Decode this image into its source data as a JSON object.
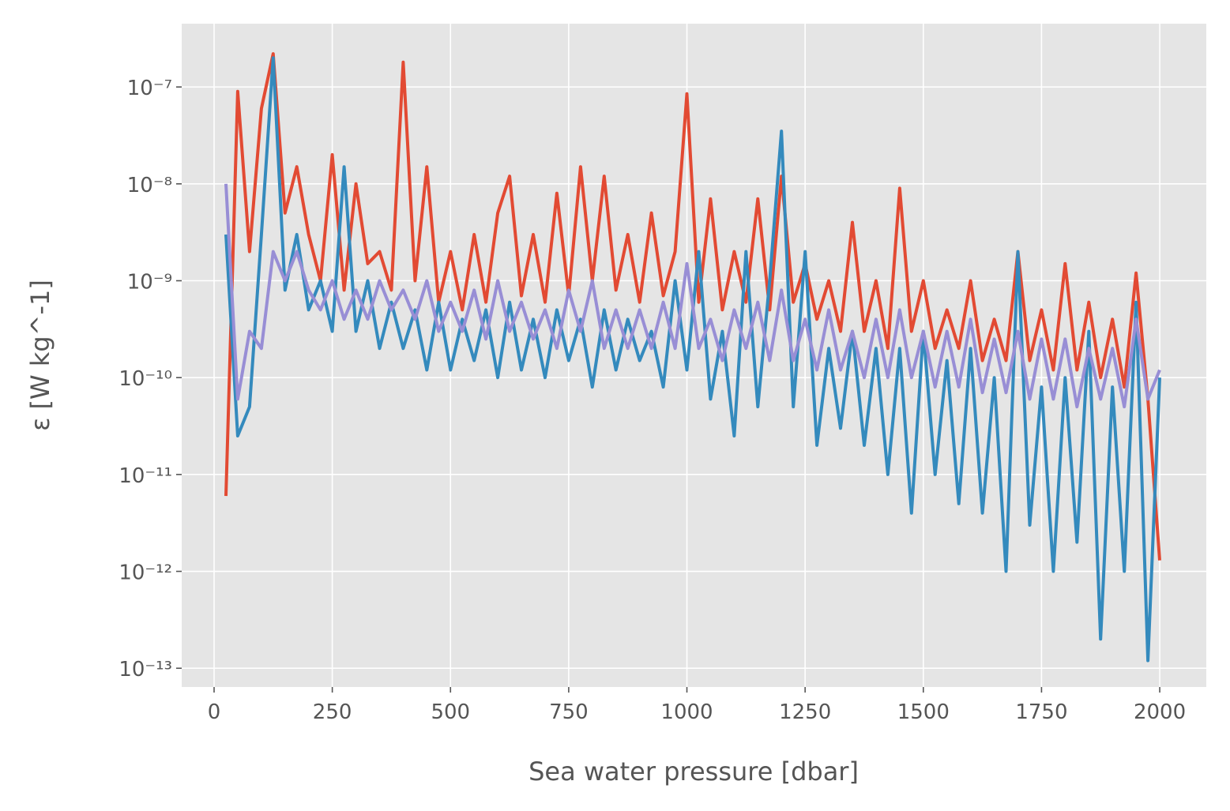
{
  "chart_data": {
    "type": "line",
    "xlabel": "Sea water pressure [dbar]",
    "ylabel": "ε [W kg^-1]",
    "yscale": "log",
    "grid": true,
    "x": [
      25,
      50,
      75,
      100,
      125,
      150,
      175,
      200,
      225,
      250,
      275,
      300,
      325,
      350,
      375,
      400,
      425,
      450,
      475,
      500,
      525,
      550,
      575,
      600,
      625,
      650,
      675,
      700,
      725,
      750,
      775,
      800,
      825,
      850,
      875,
      900,
      925,
      950,
      975,
      1000,
      1025,
      1050,
      1075,
      1100,
      1125,
      1150,
      1175,
      1200,
      1225,
      1250,
      1275,
      1300,
      1325,
      1350,
      1375,
      1400,
      1425,
      1450,
      1475,
      1500,
      1525,
      1550,
      1575,
      1600,
      1625,
      1650,
      1675,
      1700,
      1725,
      1750,
      1775,
      1800,
      1825,
      1850,
      1875,
      1900,
      1925,
      1950,
      1975,
      2000
    ],
    "series": [
      {
        "color": "#E24A33",
        "values": [
          6e-12,
          9e-08,
          2e-09,
          6e-08,
          2.2e-07,
          5e-09,
          1.5e-08,
          3e-09,
          1e-09,
          2e-08,
          8e-10,
          1e-08,
          1.5e-09,
          2e-09,
          8e-10,
          1.8e-07,
          1e-09,
          1.5e-08,
          6e-10,
          2e-09,
          5e-10,
          3e-09,
          6e-10,
          5e-09,
          1.2e-08,
          7e-10,
          3e-09,
          6e-10,
          8e-09,
          7e-10,
          1.5e-08,
          1e-09,
          1.2e-08,
          8e-10,
          3e-09,
          6e-10,
          5e-09,
          7e-10,
          2e-09,
          8.5e-08,
          6e-10,
          7e-09,
          5e-10,
          2e-09,
          6e-10,
          7e-09,
          5e-10,
          1.2e-08,
          6e-10,
          1.5e-09,
          4e-10,
          1e-09,
          3e-10,
          4e-09,
          3e-10,
          1e-09,
          2e-10,
          9e-09,
          3e-10,
          1e-09,
          2e-10,
          5e-10,
          2e-10,
          1e-09,
          1.5e-10,
          4e-10,
          1.5e-10,
          2e-09,
          1.5e-10,
          5e-10,
          1.2e-10,
          1.5e-09,
          1.2e-10,
          6e-10,
          1e-10,
          4e-10,
          8e-11,
          1.2e-09,
          6e-11,
          1.3e-12
        ]
      },
      {
        "color": "#348ABD",
        "values": [
          3e-09,
          2.5e-11,
          5e-11,
          3e-09,
          2e-07,
          8e-10,
          3e-09,
          5e-10,
          1e-09,
          3e-10,
          1.5e-08,
          3e-10,
          1e-09,
          2e-10,
          6e-10,
          2e-10,
          5e-10,
          1.2e-10,
          6e-10,
          1.2e-10,
          4e-10,
          1.5e-10,
          5e-10,
          1e-10,
          6e-10,
          1.2e-10,
          4e-10,
          1e-10,
          5e-10,
          1.5e-10,
          4e-10,
          8e-11,
          5e-10,
          1.2e-10,
          4e-10,
          1.5e-10,
          3e-10,
          8e-11,
          1e-09,
          1.2e-10,
          2e-09,
          6e-11,
          3e-10,
          2.5e-11,
          2e-09,
          5e-11,
          1e-09,
          3.5e-08,
          5e-11,
          2e-09,
          2e-11,
          2e-10,
          3e-11,
          3e-10,
          2e-11,
          2e-10,
          1e-11,
          2e-10,
          4e-12,
          3e-10,
          1e-11,
          1.5e-10,
          5e-12,
          2e-10,
          4e-12,
          1e-10,
          1e-12,
          2e-09,
          3e-12,
          8e-11,
          1e-12,
          1e-10,
          2e-12,
          3e-10,
          2e-13,
          8e-11,
          1e-12,
          6e-10,
          1.2e-13,
          1e-10
        ]
      },
      {
        "color": "#988ED5",
        "values": [
          1e-08,
          6e-11,
          3e-10,
          2e-10,
          2e-09,
          1e-09,
          2e-09,
          8e-10,
          5e-10,
          1e-09,
          4e-10,
          8e-10,
          4e-10,
          1e-09,
          5e-10,
          8e-10,
          4e-10,
          1e-09,
          3e-10,
          6e-10,
          3e-10,
          8e-10,
          2.5e-10,
          1e-09,
          3e-10,
          6e-10,
          2.5e-10,
          5e-10,
          2e-10,
          8e-10,
          3e-10,
          1e-09,
          2e-10,
          5e-10,
          2e-10,
          5e-10,
          2e-10,
          6e-10,
          2e-10,
          1.5e-09,
          2e-10,
          4e-10,
          1.5e-10,
          5e-10,
          2e-10,
          6e-10,
          1.5e-10,
          8e-10,
          1.5e-10,
          4e-10,
          1.2e-10,
          5e-10,
          1.2e-10,
          3e-10,
          1e-10,
          4e-10,
          1e-10,
          5e-10,
          1e-10,
          3e-10,
          8e-11,
          3e-10,
          8e-11,
          4e-10,
          7e-11,
          2.5e-10,
          7e-11,
          3e-10,
          6e-11,
          2.5e-10,
          6e-11,
          2.5e-10,
          5e-11,
          2e-10,
          6e-11,
          2e-10,
          5e-11,
          4e-10,
          6e-11,
          1.2e-10
        ]
      }
    ],
    "xlim": [
      -68.5,
      2098.5
    ],
    "xticks": [
      0,
      250,
      500,
      750,
      1000,
      1250,
      1500,
      1750,
      2000
    ],
    "ylim": [
      6.4e-14,
      4.5e-07
    ],
    "yticks": [
      {
        "value": 1e-13,
        "label": "10⁻¹³"
      },
      {
        "value": 1e-12,
        "label": "10⁻¹²"
      },
      {
        "value": 1e-11,
        "label": "10⁻¹¹"
      },
      {
        "value": 1e-10,
        "label": "10⁻¹⁰"
      },
      {
        "value": 1e-09,
        "label": "10⁻⁹"
      },
      {
        "value": 1e-08,
        "label": "10⁻⁸"
      },
      {
        "value": 1e-07,
        "label": "10⁻⁷"
      }
    ]
  }
}
